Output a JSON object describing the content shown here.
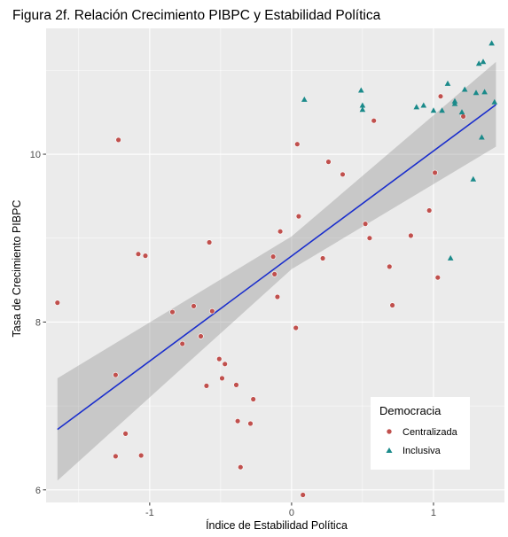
{
  "chart_data": {
    "type": "scatter",
    "title": "Figura 2f. Relación Crecimiento PIBPC y Estabilidad Política",
    "xlabel": "Índice de Estabilidad Política",
    "ylabel": "Tasa de Crecimiento PIBPC",
    "xlim": [
      -1.73,
      1.5
    ],
    "ylim": [
      5.85,
      11.5
    ],
    "x_ticks": [
      -1,
      0,
      1
    ],
    "x_tick_labels": [
      "-1",
      "0",
      "1"
    ],
    "y_ticks": [
      6,
      8,
      10
    ],
    "y_tick_labels": [
      "6",
      "8",
      "10"
    ],
    "grid": true,
    "background": "#ebebeb",
    "legend": {
      "title": "Democracia",
      "position": "bottom-right"
    },
    "series": [
      {
        "name": "Centralizada",
        "marker": "circle",
        "color": "#c0504d",
        "points": [
          [
            -1.65,
            8.23
          ],
          [
            -1.22,
            10.17
          ],
          [
            -1.24,
            7.37
          ],
          [
            -1.24,
            6.4
          ],
          [
            -1.17,
            6.67
          ],
          [
            -1.06,
            6.41
          ],
          [
            -1.08,
            8.81
          ],
          [
            -1.03,
            8.79
          ],
          [
            -0.84,
            8.12
          ],
          [
            -0.77,
            7.74
          ],
          [
            -0.69,
            8.19
          ],
          [
            -0.64,
            7.83
          ],
          [
            -0.6,
            7.24
          ],
          [
            -0.58,
            8.95
          ],
          [
            -0.56,
            8.13
          ],
          [
            -0.51,
            7.56
          ],
          [
            -0.49,
            7.33
          ],
          [
            -0.47,
            7.5
          ],
          [
            -0.39,
            7.25
          ],
          [
            -0.38,
            6.82
          ],
          [
            -0.36,
            6.27
          ],
          [
            -0.29,
            6.79
          ],
          [
            -0.27,
            7.08
          ],
          [
            -0.13,
            8.78
          ],
          [
            -0.12,
            8.57
          ],
          [
            -0.1,
            8.3
          ],
          [
            -0.08,
            9.08
          ],
          [
            0.03,
            7.93
          ],
          [
            0.04,
            10.12
          ],
          [
            0.05,
            9.26
          ],
          [
            0.08,
            5.94
          ],
          [
            0.22,
            8.76
          ],
          [
            0.26,
            9.91
          ],
          [
            0.36,
            9.76
          ],
          [
            0.52,
            9.17
          ],
          [
            0.55,
            9.0
          ],
          [
            0.58,
            10.4
          ],
          [
            0.69,
            8.66
          ],
          [
            0.71,
            8.2
          ],
          [
            0.84,
            9.03
          ],
          [
            0.97,
            9.33
          ],
          [
            1.01,
            9.78
          ],
          [
            1.03,
            8.53
          ],
          [
            1.05,
            10.69
          ],
          [
            1.21,
            10.45
          ]
        ]
      },
      {
        "name": "Inclusiva",
        "marker": "triangle",
        "color": "#1a8a8a",
        "points": [
          [
            0.09,
            10.65
          ],
          [
            0.49,
            10.76
          ],
          [
            0.5,
            10.58
          ],
          [
            0.5,
            10.53
          ],
          [
            0.88,
            10.56
          ],
          [
            0.93,
            10.58
          ],
          [
            1.0,
            10.52
          ],
          [
            1.06,
            10.52
          ],
          [
            1.1,
            10.84
          ],
          [
            1.12,
            8.76
          ],
          [
            1.15,
            10.63
          ],
          [
            1.15,
            10.6
          ],
          [
            1.2,
            10.5
          ],
          [
            1.22,
            10.77
          ],
          [
            1.28,
            9.7
          ],
          [
            1.3,
            10.73
          ],
          [
            1.32,
            11.08
          ],
          [
            1.34,
            10.2
          ],
          [
            1.35,
            11.1
          ],
          [
            1.36,
            10.74
          ],
          [
            1.41,
            11.32
          ],
          [
            1.43,
            10.62
          ]
        ]
      }
    ],
    "fit": {
      "method": "lm",
      "color": "#1a2ecc",
      "band_color": "#999999",
      "line": [
        [
          -1.65,
          6.72
        ],
        [
          1.44,
          10.59
        ]
      ],
      "band_upper": [
        [
          -1.65,
          7.33
        ],
        [
          0.0,
          9.02
        ],
        [
          1.44,
          11.1
        ]
      ],
      "band_lower": [
        [
          -1.65,
          6.11
        ],
        [
          0.0,
          8.63
        ],
        [
          1.44,
          10.09
        ]
      ]
    }
  }
}
